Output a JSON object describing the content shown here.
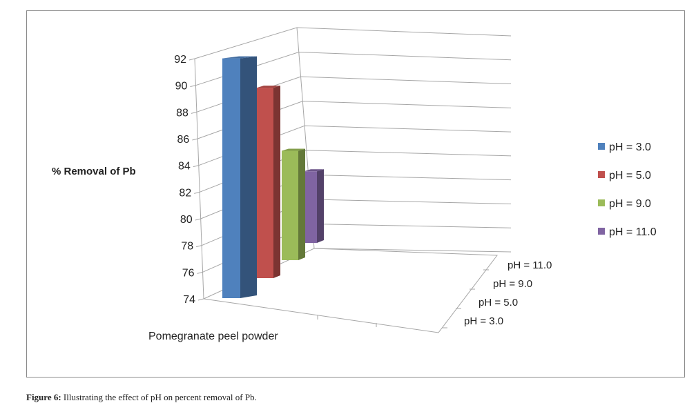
{
  "chart_data": {
    "type": "bar",
    "subtype": "3d-column",
    "ylabel": "% Removal of Pb",
    "categories": [
      "Pomegranate peel powder"
    ],
    "depth_labels": [
      "pH = 3.0",
      "pH = 5.0",
      "pH = 9.0",
      "pH = 11.0"
    ],
    "series": [
      {
        "name": "pH = 3.0",
        "values": [
          92.0
        ],
        "color": "#4f81bd"
      },
      {
        "name": "pH = 5.0",
        "values": [
          89.5
        ],
        "color": "#c0504d"
      },
      {
        "name": "pH = 9.0",
        "values": [
          84.5
        ],
        "color": "#9bbb59"
      },
      {
        "name": "pH = 11.0",
        "values": [
          82.5
        ],
        "color": "#8064a2"
      }
    ],
    "yticks": [
      "74",
      "76",
      "78",
      "80",
      "82",
      "84",
      "86",
      "88",
      "90",
      "92"
    ],
    "ylim": [
      74,
      92
    ],
    "legend_position": "right",
    "grid": true
  },
  "caption": {
    "label": "Figure 6:",
    "text": " Illustrating the effect of pH on percent removal of Pb."
  }
}
